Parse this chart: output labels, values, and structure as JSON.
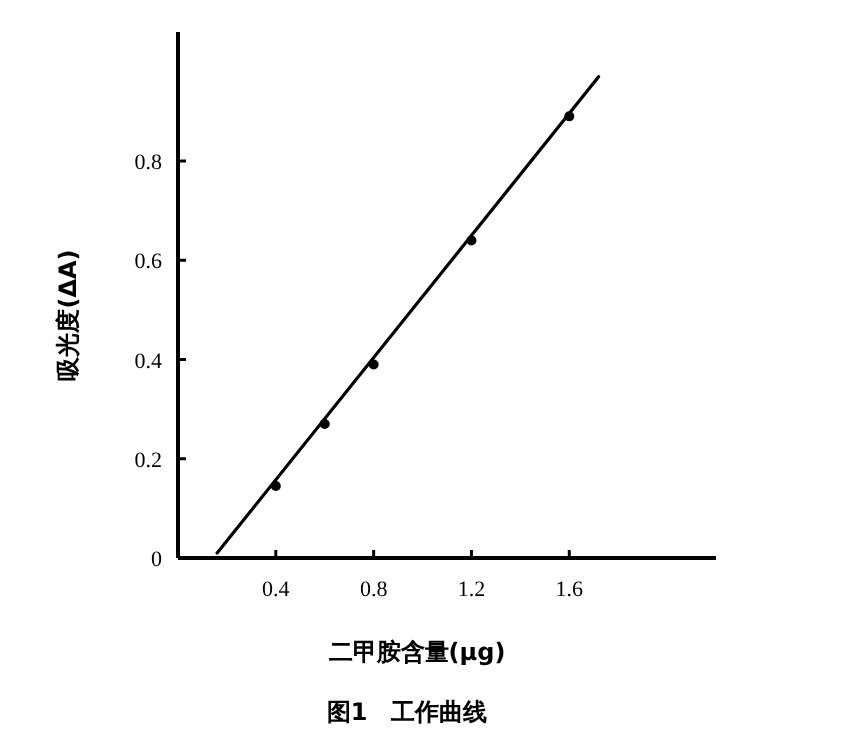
{
  "chart_data": {
    "type": "scatter",
    "title": "图1　工作曲线",
    "xlabel": "二甲胺含量(μg)",
    "ylabel": "吸光度(ΔA)",
    "xlim": [
      0,
      2.2
    ],
    "ylim": [
      0,
      1.06
    ],
    "xticks": [
      0.4,
      0.8,
      1.2,
      1.6
    ],
    "yticks": [
      0,
      0.2,
      0.4,
      0.6,
      0.8
    ],
    "grid": false,
    "series": [
      {
        "color": "#000000",
        "marker": "circle",
        "x": [
          0.4,
          0.6,
          0.8,
          1.2,
          1.6
        ],
        "values": [
          0.145,
          0.27,
          0.39,
          0.64,
          0.89
        ]
      },
      {
        "type": "line",
        "color": "#000000",
        "marker": "none",
        "line_style": "solid",
        "x": [
          0.16,
          1.72
        ],
        "values": [
          0.01,
          0.97
        ]
      }
    ]
  }
}
